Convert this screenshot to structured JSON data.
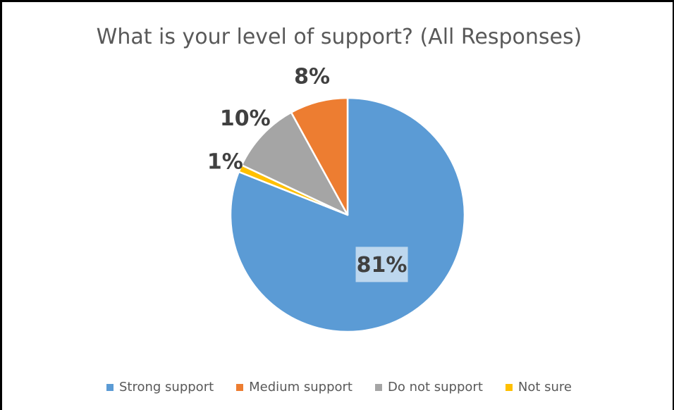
{
  "chart_data": {
    "type": "pie",
    "title": "What is your level of support? (All Responses)",
    "categories": [
      "Strong support",
      "Medium support",
      "Do not support",
      "Not sure"
    ],
    "values": [
      81,
      8,
      10,
      1
    ],
    "data_labels": [
      "81%",
      "8%",
      "10%",
      "1%"
    ],
    "colors": [
      "#5B9BD5",
      "#ED7D31",
      "#A5A5A5",
      "#FFC000"
    ],
    "legend_position": "bottom"
  }
}
